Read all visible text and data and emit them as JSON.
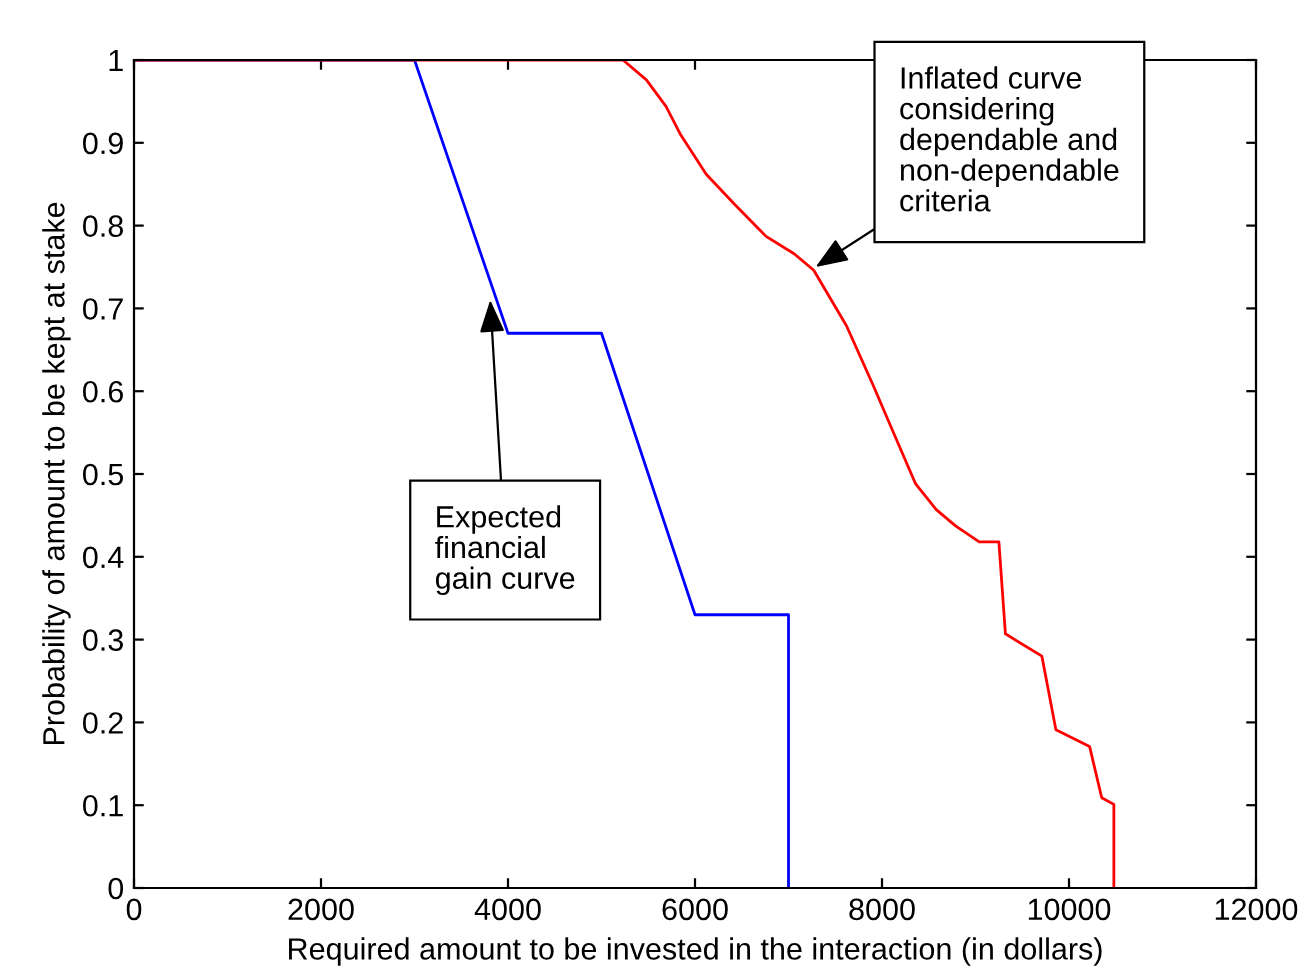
{
  "chart_data": {
    "type": "line",
    "xlabel": "Required amount to be invested in the interaction (in dollars)",
    "ylabel": "Probability of amount to be kept at stake",
    "xlim": [
      0,
      12000
    ],
    "xticks": [
      0,
      2000,
      4000,
      6000,
      8000,
      10000,
      12000
    ],
    "ylim": [
      0,
      1
    ],
    "yticks": [
      0,
      0.1,
      0.2,
      0.3,
      0.4,
      0.5,
      0.6,
      0.7,
      0.8,
      0.9,
      1
    ],
    "grid": false,
    "legend": false,
    "marker": "none",
    "line_style": "solid",
    "series": [
      {
        "color": "#0000ff",
        "x": [
          0,
          3000,
          4000,
          5000,
          6000,
          7000,
          7000
        ],
        "values": [
          1,
          1,
          0.67,
          0.67,
          0.33,
          0.33,
          0
        ]
      },
      {
        "color": "#ff0000",
        "x": [
          0,
          5230,
          5480,
          5690,
          5840,
          6120,
          6420,
          6760,
          7060,
          7270,
          7620,
          7910,
          8130,
          8360,
          8580,
          8790,
          9040,
          9250,
          9320,
          9710,
          9860,
          10220,
          10350,
          10480,
          10480
        ],
        "values": [
          1,
          1,
          0.976,
          0.944,
          0.911,
          0.862,
          0.826,
          0.787,
          0.766,
          0.746,
          0.679,
          0.606,
          0.548,
          0.488,
          0.457,
          0.437,
          0.418,
          0.418,
          0.307,
          0.28,
          0.191,
          0.171,
          0.109,
          0.101,
          0
        ]
      }
    ],
    "annotations": [
      {
        "text": "Inflated curve\nconsidering\ndependable and\nnon-dependable\ncriteria",
        "x": 7290,
        "y": 0.75
      },
      {
        "text": "Expected\nfinancial\ngain curve",
        "x": 3810,
        "y": 0.71
      }
    ]
  }
}
